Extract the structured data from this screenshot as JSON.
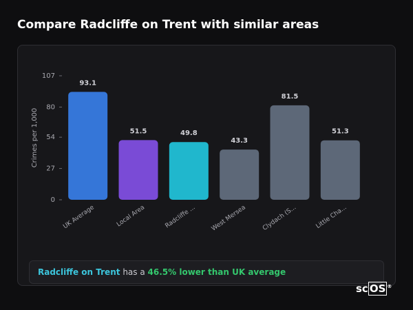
{
  "title": "Compare Radcliffe on Trent with similar areas",
  "chart_data": {
    "type": "bar",
    "y_label": "Crimes per 1,000",
    "categories": [
      "UK Average",
      "Local Area",
      "Radcliffe ...",
      "West Mersea",
      "Clydach (S...",
      "Little Cha..."
    ],
    "values": [
      93.1,
      51.5,
      49.8,
      43.3,
      81.5,
      51.3
    ],
    "colors": [
      "#3576d8",
      "#7a4bd6",
      "#20b7cd",
      "#5d6878",
      "#5d6878",
      "#5d6878"
    ],
    "ylim": [
      0,
      107
    ],
    "yticks": [
      0,
      27,
      54,
      80,
      107
    ]
  },
  "insight": {
    "area": "Radcliffe on Trent",
    "connector": "has a",
    "comparison": "46.5% lower than UK average"
  },
  "logo": {
    "prefix": "sc",
    "boxed": "OS",
    "mark": "®"
  }
}
